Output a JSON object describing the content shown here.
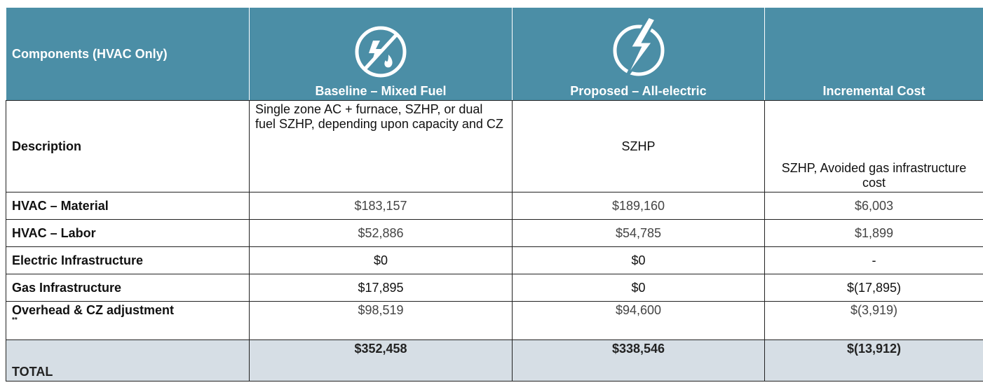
{
  "table": {
    "header": [
      "Components (HVAC Only)",
      "Baseline – Mixed Fuel",
      "Proposed – All-electric",
      "Incremental Cost"
    ],
    "rows": [
      {
        "label": "Description",
        "cells": [
          "Single zone AC + furnace, SZHP, or dual fuel SZHP, depending upon capacity and CZ",
          "SZHP",
          "SZHP, Avoided gas infrastructure cost"
        ]
      },
      {
        "label": "HVAC – Material",
        "cells": [
          "$183,157",
          "$189,160",
          "$6,003"
        ]
      },
      {
        "label": "HVAC – Labor",
        "cells": [
          "$52,886",
          "$54,785",
          "$1,899"
        ]
      },
      {
        "label": "Electric Infrastructure",
        "cells": [
          "$0",
          "$0",
          "-"
        ]
      },
      {
        "label": "Gas Infrastructure",
        "cells": [
          "$17,895",
          "$0",
          "$(17,895)"
        ]
      },
      {
        "label": "Overhead & CZ adjustment",
        "note": "**",
        "cells": [
          "$98,519",
          "$94,600",
          "$(3,919)"
        ]
      },
      {
        "label": "TOTAL",
        "cells": [
          "$352,458",
          "$338,546",
          "$(13,912)"
        ]
      }
    ]
  }
}
